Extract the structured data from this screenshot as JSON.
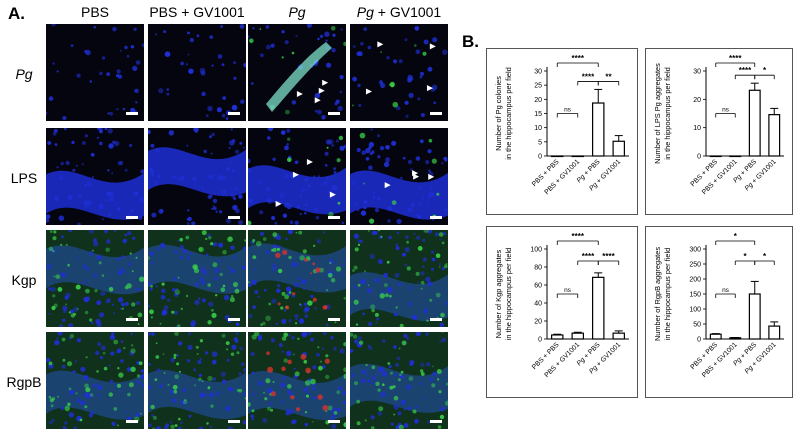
{
  "panel_a_label": "A.",
  "panel_b_label": "B.",
  "columns": [
    {
      "text": "PBS",
      "italic_part": "",
      "rest": ""
    },
    {
      "text": "PBS + GV1001",
      "italic_part": "",
      "rest": ""
    },
    {
      "text": "",
      "italic_part": "Pg",
      "rest": ""
    },
    {
      "text": "",
      "italic_part": "Pg",
      "rest": " + GV1001"
    }
  ],
  "rows": [
    {
      "label": "Pg",
      "italic": true
    },
    {
      "label": "LPS",
      "italic": false
    },
    {
      "label": "Kgp",
      "italic": false
    },
    {
      "label": "RgpB",
      "italic": false
    }
  ],
  "colors": {
    "dapi_blue": "#1f2fd6",
    "stain_green": "#39d24a",
    "stain_red": "#d8332a",
    "background": "#050510"
  },
  "chart_data": [
    {
      "type": "bar",
      "categories": [
        "PBS + PBS",
        "PBS + GV1001",
        "Pg + PBS",
        "Pg + GV1001"
      ],
      "values": [
        0,
        0,
        18.7,
        5.2
      ],
      "errors": [
        0,
        0,
        4.8,
        2.0
      ],
      "ylabel": "Number of Pg colonies in the hippocampus per field",
      "ylim": [
        0,
        30
      ],
      "yticks": [
        0,
        5,
        10,
        15,
        20,
        25,
        30
      ],
      "comparisons": [
        {
          "from": 0,
          "to": 2,
          "label": "****"
        },
        {
          "from": 1,
          "to": 2,
          "label": "****"
        },
        {
          "from": 2,
          "to": 3,
          "label": "**"
        },
        {
          "from": 0,
          "to": 1,
          "label": "ns"
        }
      ]
    },
    {
      "type": "bar",
      "categories": [
        "PBS + PBS",
        "PBS + GV1001",
        "Pg + PBS",
        "Pg + GV1001"
      ],
      "values": [
        0,
        0,
        23.2,
        14.6
      ],
      "errors": [
        0,
        0,
        2.5,
        2.2
      ],
      "ylabel": "Number of LPS Pg aggregates in the hippocampus per field",
      "ylim": [
        0,
        30
      ],
      "yticks": [
        0,
        10,
        20,
        30
      ],
      "comparisons": [
        {
          "from": 0,
          "to": 2,
          "label": "****"
        },
        {
          "from": 1,
          "to": 2,
          "label": "****"
        },
        {
          "from": 2,
          "to": 3,
          "label": "*"
        },
        {
          "from": 0,
          "to": 1,
          "label": "ns"
        }
      ]
    },
    {
      "type": "bar",
      "categories": [
        "PBS + PBS",
        "PBS + GV1001",
        "Pg + PBS",
        "Pg + GV1001"
      ],
      "values": [
        4.5,
        6.5,
        68.5,
        6.5
      ],
      "errors": [
        0.8,
        1.0,
        5.0,
        2.5
      ],
      "ylabel": "Number of Kgp aggregates in the hippocampus per field",
      "ylim": [
        0,
        100
      ],
      "yticks": [
        0,
        20,
        40,
        60,
        80,
        100
      ],
      "comparisons": [
        {
          "from": 0,
          "to": 2,
          "label": "****"
        },
        {
          "from": 1,
          "to": 2,
          "label": "****"
        },
        {
          "from": 2,
          "to": 3,
          "label": "****"
        },
        {
          "from": 0,
          "to": 1,
          "label": "ns"
        }
      ]
    },
    {
      "type": "bar",
      "categories": [
        "PBS + PBS",
        "PBS + GV1001",
        "Pg + PBS",
        "Pg + GV1001"
      ],
      "values": [
        16,
        4,
        150,
        43
      ],
      "errors": [
        2,
        1,
        42,
        14
      ],
      "ylabel": "Number of RgpB aggregates in the hippocampus per field",
      "ylim": [
        0,
        300
      ],
      "yticks": [
        0,
        50,
        100,
        150,
        200,
        250,
        300
      ],
      "comparisons": [
        {
          "from": 0,
          "to": 2,
          "label": "*"
        },
        {
          "from": 1,
          "to": 2,
          "label": "*"
        },
        {
          "from": 2,
          "to": 3,
          "label": "*"
        },
        {
          "from": 0,
          "to": 1,
          "label": "ns"
        }
      ]
    }
  ]
}
